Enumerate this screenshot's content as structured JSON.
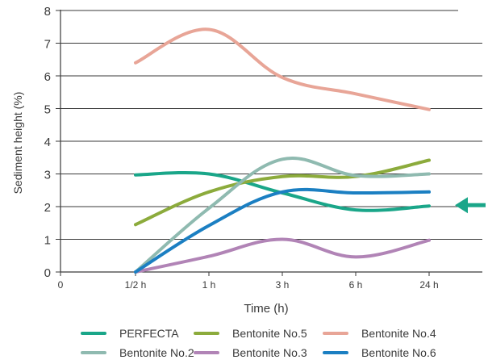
{
  "chart_data": {
    "type": "line",
    "xlabel": "Time (h)",
    "ylabel": "Sediment height (%)",
    "categories": [
      "0",
      "1/2 h",
      "1 h",
      "3 h",
      "6 h",
      "24 h"
    ],
    "yticks": [
      "0",
      "1",
      "2",
      "3",
      "4",
      "5",
      "6",
      "7",
      "8"
    ],
    "ylim": [
      0,
      8
    ],
    "grid": true,
    "legend_position": "bottom",
    "series": [
      {
        "name": "PERFECTA",
        "color": "#1aa689",
        "values": [
          null,
          2.97,
          3.0,
          2.42,
          1.9,
          2.02
        ]
      },
      {
        "name": "Bentonite No.5",
        "color": "#8cab3c",
        "values": [
          null,
          1.45,
          2.45,
          2.92,
          2.92,
          3.42
        ]
      },
      {
        "name": "Bentonite No.4",
        "color": "#e8a597",
        "values": [
          null,
          6.4,
          7.42,
          5.95,
          5.45,
          4.97
        ]
      },
      {
        "name": "Bentonite No.2",
        "color": "#8fbab0",
        "values": [
          null,
          0.0,
          1.95,
          3.45,
          2.95,
          3.0
        ]
      },
      {
        "name": "Bentonite No.3",
        "color": "#b184b6",
        "values": [
          null,
          0.0,
          0.48,
          1.0,
          0.46,
          0.97
        ]
      },
      {
        "name": "Bentonite No.6",
        "color": "#1b7fc2",
        "values": [
          null,
          0.0,
          1.42,
          2.45,
          2.42,
          2.45
        ]
      }
    ],
    "annotation": {
      "type": "arrow",
      "target_series": "PERFECTA",
      "color": "#1aa689"
    }
  }
}
